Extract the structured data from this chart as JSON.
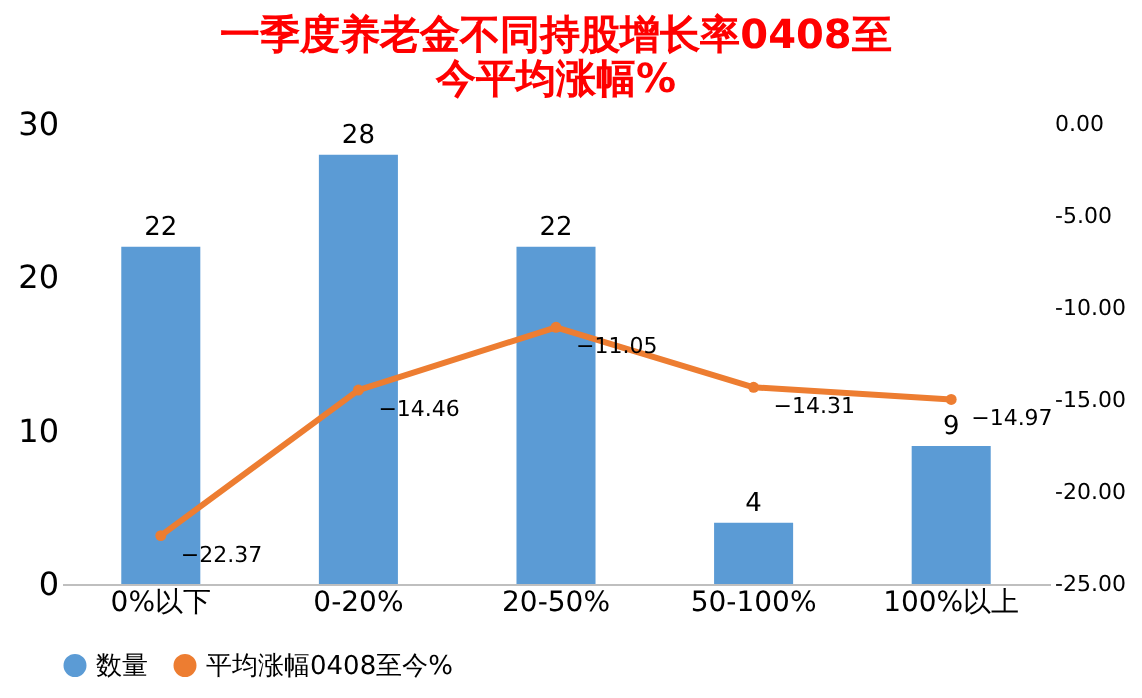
{
  "chart_data": {
    "type": "bar",
    "title": "一季度养老金不同持股增长率0408至今平均涨幅%",
    "categories": [
      "0%以下",
      "0-20%",
      "20-50%",
      "50-100%",
      "100%以上"
    ],
    "series": [
      {
        "name": "数量",
        "color": "#5b9bd5",
        "values": [
          22,
          28,
          22,
          4,
          9
        ]
      },
      {
        "type": "line",
        "name": "平均涨幅0408至今%",
        "color": "#ed7d31",
        "axis": "y2",
        "values": [
          -22.37,
          -14.46,
          -11.05,
          -14.31,
          -14.97
        ]
      }
    ],
    "ylim": [
      0,
      30
    ],
    "yticks": [
      0,
      10,
      20,
      30
    ],
    "y2lim": [
      -25,
      0
    ],
    "y2ticks": [
      {
        "value": 0,
        "label": "0.00"
      },
      {
        "value": -5,
        "label": "-5.00"
      },
      {
        "value": -10,
        "label": "-10.00"
      },
      {
        "value": -15,
        "label": "-15.00"
      },
      {
        "value": -20,
        "label": "-20.00"
      },
      {
        "value": -25,
        "label": "-25.00"
      }
    ],
    "data_labels": true,
    "legend": "bottom",
    "marker": "circle",
    "grid": false
  }
}
